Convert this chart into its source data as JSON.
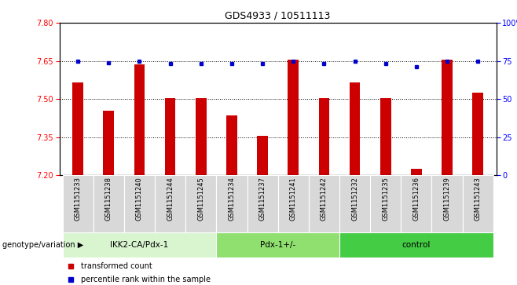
{
  "title": "GDS4933 / 10511113",
  "samples": [
    "GSM1151233",
    "GSM1151238",
    "GSM1151240",
    "GSM1151244",
    "GSM1151245",
    "GSM1151234",
    "GSM1151237",
    "GSM1151241",
    "GSM1151242",
    "GSM1151232",
    "GSM1151235",
    "GSM1151236",
    "GSM1151239",
    "GSM1151243"
  ],
  "red_values": [
    7.565,
    7.455,
    7.635,
    7.505,
    7.505,
    7.435,
    7.355,
    7.655,
    7.502,
    7.565,
    7.505,
    7.225,
    7.655,
    7.525
  ],
  "blue_values": [
    75,
    74,
    75,
    73,
    73,
    73,
    73,
    75,
    73,
    75,
    73,
    71,
    75,
    75
  ],
  "groups": [
    {
      "label": "IKK2-CA/Pdx-1",
      "start": 0,
      "end": 5,
      "color": "#d8f5d0"
    },
    {
      "label": "Pdx-1+/-",
      "start": 5,
      "end": 9,
      "color": "#90e070"
    },
    {
      "label": "control",
      "start": 9,
      "end": 14,
      "color": "#44cc44"
    }
  ],
  "ymin": 7.2,
  "ymax": 7.8,
  "yticks": [
    7.2,
    7.35,
    7.5,
    7.65,
    7.8
  ],
  "y2min": 0,
  "y2max": 100,
  "y2ticks": [
    0,
    25,
    50,
    75,
    100
  ],
  "bar_color": "#cc0000",
  "dot_color": "#0000cc",
  "bar_width": 0.35,
  "legend_red": "transformed count",
  "legend_blue": "percentile rank within the sample",
  "xlabel_label": "genotype/variation"
}
